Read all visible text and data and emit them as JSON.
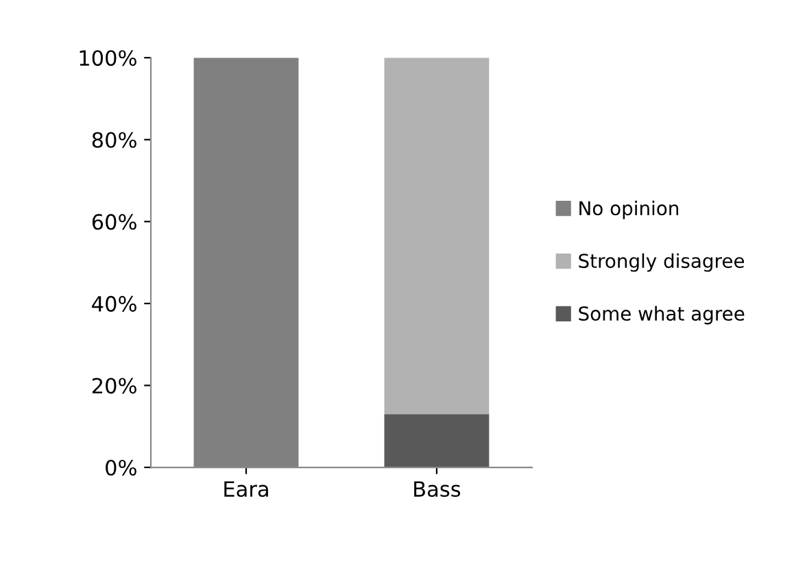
{
  "chart_data": {
    "type": "bar",
    "stacked": true,
    "categories": [
      "Eara",
      "Bass"
    ],
    "series": [
      {
        "name": "Some what agree",
        "color": "#595959",
        "values": [
          0,
          13
        ]
      },
      {
        "name": "Strongly disagree",
        "color": "#b2b2b2",
        "values": [
          0,
          87
        ]
      },
      {
        "name": "No opinion",
        "color": "#808080",
        "values": [
          100,
          0
        ]
      }
    ],
    "ylim": [
      0,
      100
    ],
    "yticks": [
      {
        "value": 0,
        "label": "0%"
      },
      {
        "value": 20,
        "label": "20%"
      },
      {
        "value": 40,
        "label": "40%"
      },
      {
        "value": 60,
        "label": "60%"
      },
      {
        "value": 80,
        "label": "80%"
      },
      {
        "value": 100,
        "label": "100%"
      }
    ],
    "grid": false,
    "legend": "right"
  }
}
